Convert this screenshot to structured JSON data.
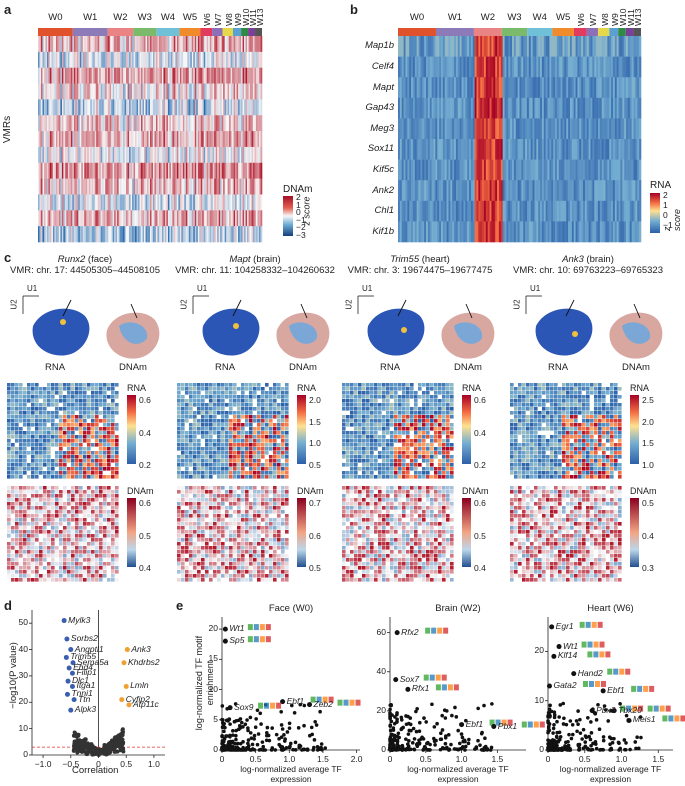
{
  "panel_a": {
    "label": "a",
    "groups": [
      "W0",
      "W1",
      "W2",
      "W3",
      "W4",
      "W5",
      "W6",
      "W7",
      "W8",
      "W9",
      "W10",
      "W11",
      "W13"
    ],
    "group_colors": [
      "#e0522b",
      "#8c7bb8",
      "#e98384",
      "#7cba6b",
      "#70c0d8",
      "#f08a2a",
      "#e23b5e",
      "#8d6fb7",
      "#e5d84a",
      "#5aa0d2",
      "#2f8a43",
      "#7a3f98",
      "#555555"
    ],
    "ylabel": "VMRs",
    "legend_title": "DNAm",
    "legend_ticks": [
      "2",
      "1",
      "0",
      "−1",
      "−2",
      "−3"
    ],
    "legend_side": "z score"
  },
  "panel_b": {
    "label": "b",
    "genes": [
      "Map1b",
      "Celf4",
      "Mapt",
      "Gap43",
      "Meg3",
      "Sox11",
      "Kif5c",
      "Ank2",
      "Chl1",
      "Kif1b"
    ],
    "legend_title": "RNA",
    "legend_ticks": [
      "2",
      "1",
      "0",
      "−1"
    ],
    "legend_side": "z score"
  },
  "panel_c": {
    "label": "c",
    "columns": [
      {
        "gene": "Runx2",
        "tissue": "(face)",
        "vmr": "VMR: chr. 17: 44505305–44508105",
        "rna_ticks": [
          "0.6",
          "0.4",
          "0.2"
        ],
        "dnam_ticks": [
          "0.6",
          "0.5",
          "0.4"
        ]
      },
      {
        "gene": "Mapt",
        "tissue": "(brain)",
        "vmr": "VMR: chr. 11: 104258332–104260632",
        "rna_ticks": [
          "2.0",
          "1.5",
          "1.0",
          "0.5"
        ],
        "dnam_ticks": [
          "0.7",
          "0.6",
          "0.5"
        ]
      },
      {
        "gene": "Trim55",
        "tissue": "(heart)",
        "vmr": "VMR: chr. 3: 19674475–19677475",
        "rna_ticks": [
          "0.6",
          "0.4",
          "0.2"
        ],
        "dnam_ticks": [
          "0.6",
          "0.5",
          "0.4"
        ]
      },
      {
        "gene": "Ank3",
        "tissue": "(brain)",
        "vmr": "VMR: chr. 10: 69763223–69765323",
        "rna_ticks": [
          "2.5",
          "2.0",
          "1.5",
          "1.0"
        ],
        "dnam_ticks": [
          "0.5",
          "0.4",
          "0.3"
        ]
      }
    ],
    "umap_rna_label": "RNA",
    "umap_dnam_label": "DNAm",
    "u1": "U1",
    "u2": "U2",
    "rna_legend": "RNA",
    "dnam_legend": "DNAm"
  },
  "panel_d": {
    "label": "d",
    "xlabel": "Correlation",
    "ylabel": "−log10(P value)",
    "xticks": [
      "−1.0",
      "−0.5",
      "0",
      "0.5",
      "1.0"
    ],
    "yticks": [
      "0",
      "10",
      "20",
      "30",
      "40",
      "50"
    ],
    "neg_genes": [
      "Mylk3",
      "Sorbs2",
      "Angptl1",
      "Trim55",
      "Sema5a",
      "Ehd4",
      "Filip1",
      "Dlc1",
      "Itga1",
      "Tnni1",
      "Ttn",
      "Alpk3"
    ],
    "pos_genes": [
      "Ank3",
      "Khdrbs2",
      "Lmln",
      "Cyfip2",
      "Atp11c"
    ]
  },
  "panel_e": {
    "label": "e",
    "ylabel": "log-normalized TF motif enrichment",
    "xlabel": "log-normalized average TF expression",
    "plots": [
      {
        "title": "Face (W0)",
        "xticks": [
          "0",
          "0.5",
          "1.0",
          "1.5",
          "2.0"
        ],
        "yticks": [
          "0",
          "5",
          "10",
          "15",
          "20"
        ],
        "genes": [
          "Wt1",
          "Sp5",
          "Ebf1",
          "Zeb2",
          "Sox9"
        ]
      },
      {
        "title": "Brain (W2)",
        "xticks": [
          "0",
          "0.5",
          "1.0",
          "1.5"
        ],
        "yticks": [
          "0",
          "20",
          "40",
          "60"
        ],
        "genes": [
          "Rfx2",
          "Sox7",
          "Rfx1",
          "Ebf1",
          "Pbx1"
        ]
      },
      {
        "title": "Heart (W6)",
        "xticks": [
          "0",
          "0.5",
          "1.0",
          "1.5"
        ],
        "yticks": [
          "0",
          "10",
          "20"
        ],
        "genes": [
          "Egr1",
          "Wt1",
          "Klf14",
          "Hand2",
          "Gata2",
          "Ebf1",
          "Pbx3",
          "Tbx20",
          "Meis1"
        ]
      }
    ]
  }
}
